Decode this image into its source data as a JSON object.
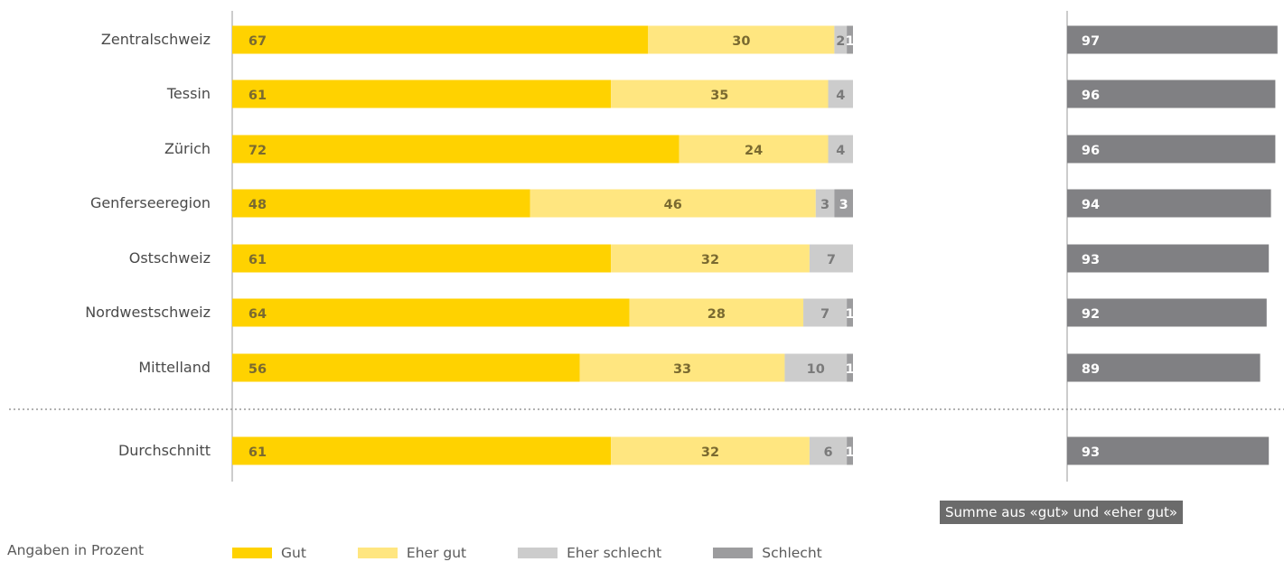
{
  "chart_data": {
    "type": "bar",
    "orientation": "horizontal",
    "stacked": true,
    "categories": [
      "Zentralschweiz",
      "Tessin",
      "Zürich",
      "Genferseeregion",
      "Ostschweiz",
      "Nordwestschweiz",
      "Mittelland",
      "Durchschnitt"
    ],
    "series": [
      {
        "name": "Gut",
        "color": "#ffd200",
        "values": [
          67,
          61,
          72,
          48,
          61,
          64,
          56,
          61
        ]
      },
      {
        "name": "Eher gut",
        "color": "#ffe680",
        "values": [
          30,
          35,
          24,
          46,
          32,
          28,
          33,
          32
        ]
      },
      {
        "name": "Eher schlecht",
        "color": "#cccccc",
        "values": [
          2,
          4,
          4,
          3,
          7,
          7,
          10,
          6
        ]
      },
      {
        "name": "Schlecht",
        "color": "#9c9c9e",
        "values": [
          1,
          0,
          0,
          3,
          0,
          1,
          1,
          1
        ]
      }
    ],
    "sum_series": {
      "color": "#808083",
      "values": [
        97,
        96,
        96,
        94,
        93,
        92,
        89,
        93
      ]
    },
    "sum_label": "Summe aus «gut» und «eher gut»",
    "note": "Angaben in Prozent",
    "xlim": [
      0,
      100
    ],
    "grid": false,
    "legend_position": "bottom"
  }
}
